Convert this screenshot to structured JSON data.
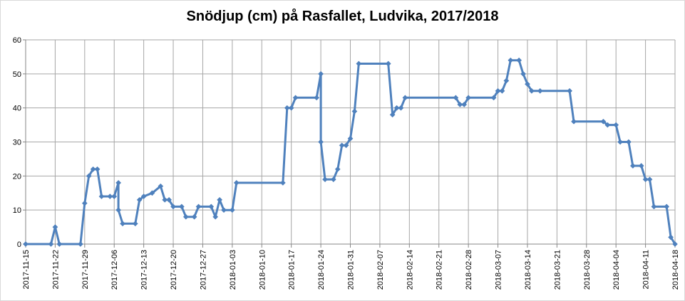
{
  "chart_data": {
    "type": "line",
    "title": "Snödjup (cm) på Rasfallet, Ludvika, 2017/2018",
    "xlabel": "",
    "ylabel": "",
    "x_axis": "date",
    "xlim": [
      "2017-11-15",
      "2018-04-18"
    ],
    "ylim": [
      0,
      60
    ],
    "y_ticks": [
      0,
      10,
      20,
      30,
      40,
      50,
      60
    ],
    "x_ticks": [
      "2017-11-15",
      "2017-11-22",
      "2017-11-29",
      "2017-12-06",
      "2017-12-13",
      "2017-12-20",
      "2017-12-27",
      "2018-01-03",
      "2018-01-10",
      "2018-01-17",
      "2018-01-24",
      "2018-01-31",
      "2018-02-07",
      "2018-02-14",
      "2018-02-21",
      "2018-02-28",
      "2018-03-07",
      "2018-03-14",
      "2018-03-21",
      "2018-03-28",
      "2018-04-04",
      "2018-04-11",
      "2018-04-18"
    ],
    "grid": true,
    "legend": "none",
    "series": [
      {
        "color": "#4f81bd",
        "points": [
          [
            "2017-11-15",
            0
          ],
          [
            "2017-11-21",
            0
          ],
          [
            "2017-11-22",
            5
          ],
          [
            "2017-11-23",
            0
          ],
          [
            "2017-11-28",
            0
          ],
          [
            "2017-11-29",
            12
          ],
          [
            "2017-11-30",
            20
          ],
          [
            "2017-12-01",
            22
          ],
          [
            "2017-12-02",
            22
          ],
          [
            "2017-12-03",
            14
          ],
          [
            "2017-12-05",
            14
          ],
          [
            "2017-12-06",
            14
          ],
          [
            "2017-12-07",
            18
          ],
          [
            "2017-12-07",
            10
          ],
          [
            "2017-12-08",
            6
          ],
          [
            "2017-12-11",
            6
          ],
          [
            "2017-12-12",
            13
          ],
          [
            "2017-12-13",
            14
          ],
          [
            "2017-12-15",
            15
          ],
          [
            "2017-12-17",
            17
          ],
          [
            "2017-12-18",
            13
          ],
          [
            "2017-12-19",
            13
          ],
          [
            "2017-12-20",
            11
          ],
          [
            "2017-12-22",
            11
          ],
          [
            "2017-12-23",
            8
          ],
          [
            "2017-12-25",
            8
          ],
          [
            "2017-12-26",
            11
          ],
          [
            "2017-12-29",
            11
          ],
          [
            "2017-12-30",
            8
          ],
          [
            "2017-12-31",
            13
          ],
          [
            "2018-01-01",
            10
          ],
          [
            "2018-01-03",
            10
          ],
          [
            "2018-01-04",
            18
          ],
          [
            "2018-01-15",
            18
          ],
          [
            "2018-01-16",
            40
          ],
          [
            "2018-01-17",
            40
          ],
          [
            "2018-01-18",
            43
          ],
          [
            "2018-01-23",
            43
          ],
          [
            "2018-01-24",
            50
          ],
          [
            "2018-01-24",
            30
          ],
          [
            "2018-01-25",
            19
          ],
          [
            "2018-01-27",
            19
          ],
          [
            "2018-01-28",
            22
          ],
          [
            "2018-01-29",
            29
          ],
          [
            "2018-01-30",
            29
          ],
          [
            "2018-01-31",
            31
          ],
          [
            "2018-02-01",
            39
          ],
          [
            "2018-02-02",
            53
          ],
          [
            "2018-02-09",
            53
          ],
          [
            "2018-02-10",
            38
          ],
          [
            "2018-02-11",
            40
          ],
          [
            "2018-02-12",
            40
          ],
          [
            "2018-02-13",
            43
          ],
          [
            "2018-02-25",
            43
          ],
          [
            "2018-02-26",
            41
          ],
          [
            "2018-02-27",
            41
          ],
          [
            "2018-02-28",
            43
          ],
          [
            "2018-03-06",
            43
          ],
          [
            "2018-03-07",
            45
          ],
          [
            "2018-03-08",
            45
          ],
          [
            "2018-03-09",
            48
          ],
          [
            "2018-03-10",
            54
          ],
          [
            "2018-03-12",
            54
          ],
          [
            "2018-03-13",
            50
          ],
          [
            "2018-03-14",
            47
          ],
          [
            "2018-03-15",
            45
          ],
          [
            "2018-03-17",
            45
          ],
          [
            "2018-03-24",
            45
          ],
          [
            "2018-03-25",
            36
          ],
          [
            "2018-04-01",
            36
          ],
          [
            "2018-04-02",
            35
          ],
          [
            "2018-04-04",
            35
          ],
          [
            "2018-04-05",
            30
          ],
          [
            "2018-04-07",
            30
          ],
          [
            "2018-04-08",
            23
          ],
          [
            "2018-04-10",
            23
          ],
          [
            "2018-04-11",
            19
          ],
          [
            "2018-04-12",
            19
          ],
          [
            "2018-04-13",
            11
          ],
          [
            "2018-04-16",
            11
          ],
          [
            "2018-04-17",
            2
          ],
          [
            "2018-04-18",
            0
          ]
        ]
      }
    ]
  }
}
